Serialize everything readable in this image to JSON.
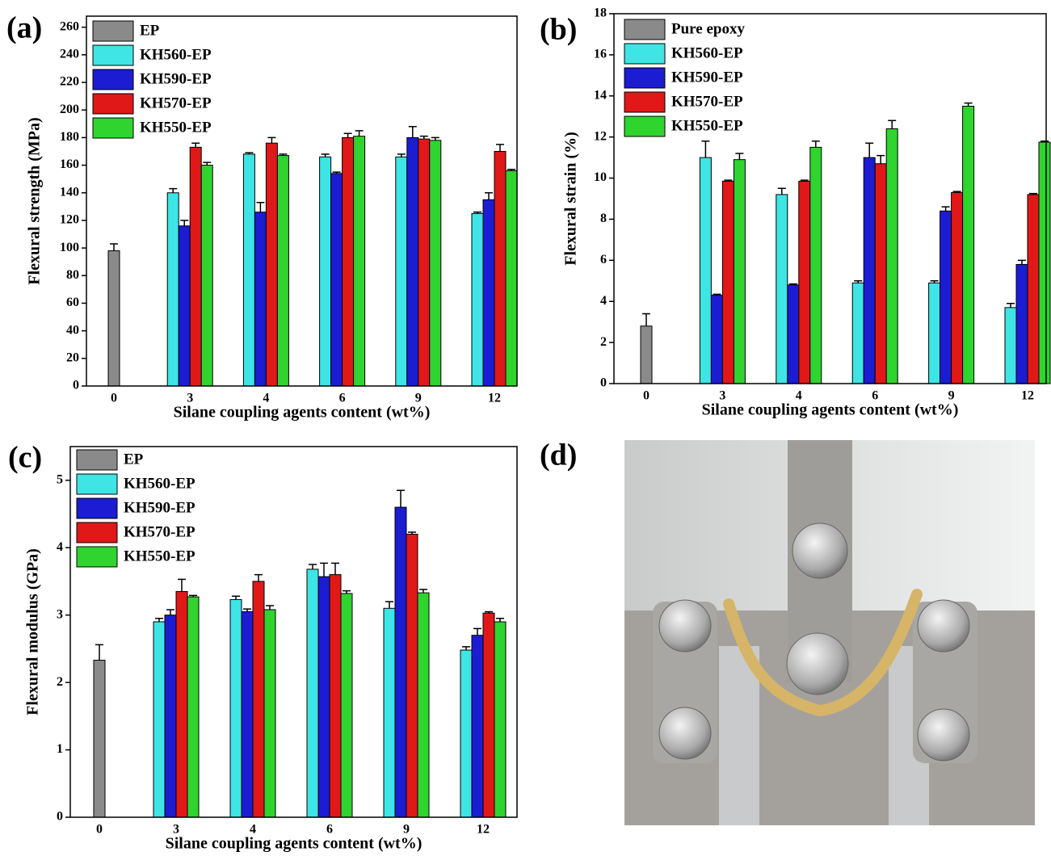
{
  "chart_data": [
    {
      "type": "bar",
      "panel_label": "(a)",
      "xlabel": "Silane coupling agents content (wt%)",
      "ylabel": "Flexural strength (MPa)",
      "categories": [
        "0",
        "3",
        "4",
        "6",
        "9",
        "12"
      ],
      "ylim": [
        0,
        268
      ],
      "yticks": [
        0,
        20,
        40,
        60,
        80,
        100,
        120,
        140,
        160,
        180,
        200,
        220,
        240,
        260
      ],
      "legend": "upper left",
      "series": [
        {
          "name": "EP",
          "color": "#8a8a8a",
          "values": [
            98,
            null,
            null,
            null,
            null,
            null
          ],
          "errors": [
            5,
            null,
            null,
            null,
            null,
            null
          ]
        },
        {
          "name": "KH560-EP",
          "color": "#3fe4e4",
          "values": [
            null,
            140,
            168,
            166,
            166,
            125
          ],
          "errors": [
            null,
            3,
            1,
            2,
            2,
            1
          ]
        },
        {
          "name": "KH590-EP",
          "color": "#1c1cd2",
          "values": [
            null,
            116,
            126,
            154,
            180,
            135
          ],
          "errors": [
            null,
            4,
            7,
            1,
            8,
            5
          ]
        },
        {
          "name": "KH570-EP",
          "color": "#e01818",
          "values": [
            null,
            173,
            176,
            180,
            179,
            170
          ],
          "errors": [
            null,
            3,
            4,
            3,
            2,
            5
          ]
        },
        {
          "name": "KH550-EP",
          "color": "#2fd42f",
          "values": [
            null,
            160,
            167,
            181,
            178,
            156
          ],
          "errors": [
            null,
            2,
            1,
            4,
            2,
            1
          ]
        }
      ]
    },
    {
      "type": "bar",
      "panel_label": "(b)",
      "xlabel": "Silane coupling agents content (wt%)",
      "ylabel": "Flexural strain (%)",
      "categories": [
        "0",
        "3",
        "4",
        "6",
        "9",
        "12"
      ],
      "ylim": [
        0,
        18
      ],
      "yticks": [
        0,
        2,
        4,
        6,
        8,
        10,
        12,
        14,
        16,
        18
      ],
      "legend": "upper left",
      "series": [
        {
          "name": "Pure epoxy",
          "color": "#8a8a8a",
          "values": [
            2.8,
            null,
            null,
            null,
            null,
            null
          ],
          "errors": [
            0.6,
            null,
            null,
            null,
            null,
            null
          ]
        },
        {
          "name": "KH560-EP",
          "color": "#3fe4e4",
          "values": [
            null,
            11.0,
            9.2,
            4.9,
            4.9,
            3.7
          ],
          "errors": [
            null,
            0.8,
            0.3,
            0.1,
            0.1,
            0.2
          ]
        },
        {
          "name": "KH590-EP",
          "color": "#1c1cd2",
          "values": [
            null,
            4.3,
            4.8,
            11.0,
            8.4,
            5.8
          ],
          "errors": [
            null,
            0.05,
            0.05,
            0.7,
            0.2,
            0.2
          ]
        },
        {
          "name": "KH570-EP",
          "color": "#e01818",
          "values": [
            null,
            9.85,
            9.85,
            10.7,
            9.3,
            9.2
          ],
          "errors": [
            null,
            0.05,
            0.05,
            0.4,
            0.05,
            0.05
          ]
        },
        {
          "name": "KH550-EP",
          "color": "#2fd42f",
          "values": [
            null,
            10.9,
            11.5,
            12.4,
            13.5,
            11.75
          ],
          "errors": [
            null,
            0.3,
            0.3,
            0.4,
            0.15,
            0.05
          ]
        }
      ]
    },
    {
      "type": "bar",
      "panel_label": "(c)",
      "xlabel": "Silane coupling agents content (wt%)",
      "ylabel": "Flexural modulus (GPa)",
      "categories": [
        "0",
        "3",
        "4",
        "6",
        "9",
        "12"
      ],
      "ylim": [
        0,
        5.5
      ],
      "yticks": [
        0,
        1,
        2,
        3,
        4,
        5
      ],
      "legend": "upper left",
      "series": [
        {
          "name": "EP",
          "color": "#8a8a8a",
          "values": [
            2.33,
            null,
            null,
            null,
            null,
            null
          ],
          "errors": [
            0.23,
            null,
            null,
            null,
            null,
            null
          ]
        },
        {
          "name": "KH560-EP",
          "color": "#3fe4e4",
          "values": [
            null,
            2.9,
            3.23,
            3.68,
            3.1,
            2.48
          ],
          "errors": [
            null,
            0.05,
            0.05,
            0.07,
            0.1,
            0.05
          ]
        },
        {
          "name": "KH590-EP",
          "color": "#1c1cd2",
          "values": [
            null,
            3.0,
            3.05,
            3.57,
            4.6,
            2.7
          ],
          "errors": [
            null,
            0.08,
            0.04,
            0.2,
            0.25,
            0.1
          ]
        },
        {
          "name": "KH570-EP",
          "color": "#e01818",
          "values": [
            null,
            3.35,
            3.5,
            3.6,
            4.2,
            3.03
          ],
          "errors": [
            null,
            0.18,
            0.1,
            0.17,
            0.03,
            0.02
          ]
        },
        {
          "name": "KH550-EP",
          "color": "#2fd42f",
          "values": [
            null,
            3.27,
            3.08,
            3.32,
            3.33,
            2.9
          ],
          "errors": [
            null,
            0.02,
            0.06,
            0.04,
            0.05,
            0.05
          ]
        }
      ]
    }
  ],
  "photo": {
    "label": "(d)"
  }
}
